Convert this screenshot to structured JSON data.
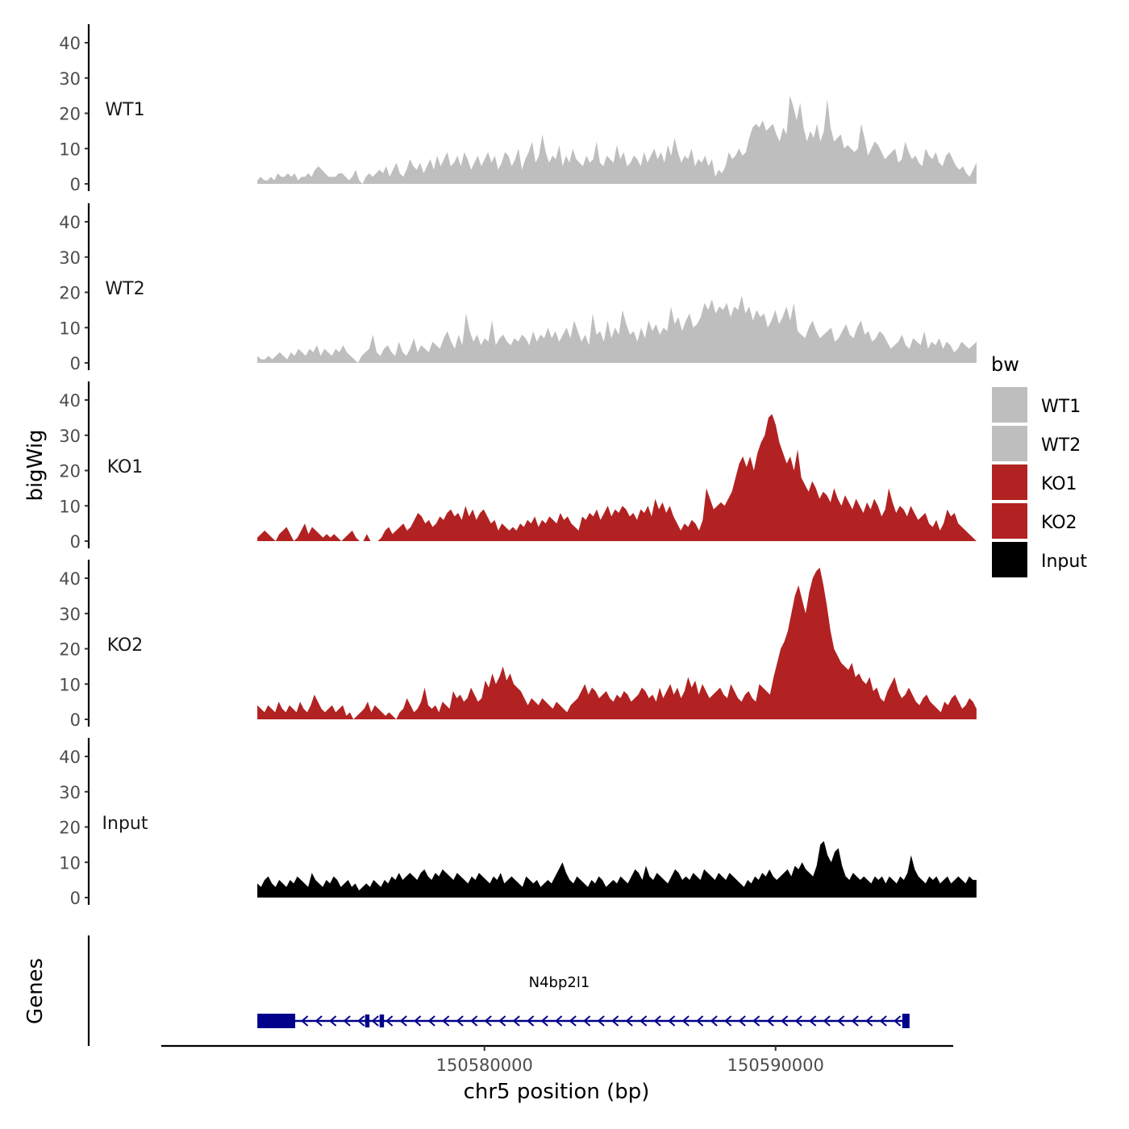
{
  "chart_data": {
    "type": "area",
    "title": "",
    "xlabel": "chr5 position (bp)",
    "ylabel": "bigWig",
    "genes_track_label": "Genes",
    "x_tick_labels": [
      "150580000",
      "150590000"
    ],
    "x_ticks": [
      150580000,
      150590000
    ],
    "xlim": [
      150568900,
      150596100
    ],
    "data_range": [
      150572200,
      150596900
    ],
    "ylim": [
      0,
      45
    ],
    "y_ticks": [
      0,
      10,
      20,
      30,
      40
    ],
    "y_tick_labels": [
      "0",
      "10",
      "20",
      "30",
      "40"
    ],
    "legend": {
      "title": "bw",
      "position": "right",
      "entries": [
        {
          "label": "WT1",
          "color": "#bebebe"
        },
        {
          "label": "WT2",
          "color": "#bebebe"
        },
        {
          "label": "KO1",
          "color": "#b22222"
        },
        {
          "label": "KO2",
          "color": "#b22222"
        },
        {
          "label": "Input",
          "color": "#000000"
        }
      ]
    },
    "series": [
      {
        "name": "WT1",
        "color": "#bebebe",
        "values": [
          1,
          2,
          1,
          1,
          2,
          1,
          3,
          2,
          2,
          3,
          2,
          3,
          1,
          2,
          2,
          3,
          2,
          4,
          5,
          4,
          3,
          2,
          2,
          2,
          3,
          3,
          2,
          1,
          2,
          4,
          1,
          0,
          2,
          3,
          2,
          3,
          4,
          3,
          5,
          2,
          4,
          6,
          3,
          2,
          4,
          7,
          5,
          4,
          6,
          3,
          5,
          7,
          4,
          8,
          5,
          7,
          9,
          5,
          6,
          8,
          5,
          9,
          7,
          4,
          6,
          8,
          5,
          7,
          9,
          6,
          8,
          4,
          6,
          9,
          8,
          5,
          7,
          10,
          4,
          7,
          9,
          12,
          6,
          8,
          14,
          9,
          6,
          8,
          7,
          11,
          5,
          8,
          6,
          10,
          7,
          6,
          5,
          8,
          6,
          7,
          12,
          6,
          5,
          8,
          7,
          6,
          11,
          7,
          9,
          5,
          6,
          8,
          7,
          5,
          9,
          6,
          8,
          10,
          7,
          9,
          6,
          11,
          8,
          13,
          9,
          6,
          8,
          7,
          10,
          5,
          7,
          6,
          8,
          5,
          7,
          2,
          4,
          3,
          5,
          9,
          7,
          8,
          10,
          8,
          9,
          13,
          16,
          17,
          16,
          18,
          15,
          16,
          17,
          14,
          12,
          16,
          14,
          25,
          22,
          18,
          23,
          16,
          12,
          15,
          13,
          17,
          12,
          15,
          24,
          16,
          12,
          13,
          14,
          10,
          11,
          10,
          9,
          10,
          17,
          13,
          8,
          10,
          12,
          11,
          9,
          7,
          8,
          9,
          10,
          6,
          7,
          12,
          9,
          7,
          8,
          6,
          5,
          10,
          8,
          7,
          9,
          6,
          5,
          8,
          9,
          7,
          5,
          4,
          5,
          3,
          2,
          4,
          6
        ]
      },
      {
        "name": "WT2",
        "color": "#bebebe",
        "values": [
          2,
          1,
          1,
          2,
          1,
          2,
          3,
          2,
          1,
          3,
          2,
          4,
          3,
          2,
          4,
          3,
          5,
          2,
          4,
          3,
          2,
          4,
          3,
          5,
          3,
          2,
          1,
          0,
          2,
          3,
          4,
          8,
          3,
          2,
          4,
          5,
          3,
          2,
          6,
          3,
          2,
          4,
          7,
          3,
          5,
          4,
          3,
          6,
          5,
          4,
          7,
          9,
          6,
          4,
          8,
          5,
          14,
          9,
          6,
          8,
          5,
          7,
          6,
          12,
          5,
          7,
          8,
          6,
          5,
          7,
          6,
          8,
          7,
          5,
          9,
          6,
          8,
          7,
          10,
          7,
          9,
          6,
          8,
          10,
          7,
          12,
          9,
          6,
          8,
          5,
          14,
          8,
          9,
          6,
          12,
          7,
          10,
          8,
          15,
          11,
          8,
          9,
          6,
          10,
          7,
          12,
          9,
          11,
          8,
          10,
          9,
          16,
          11,
          13,
          9,
          12,
          14,
          10,
          11,
          13,
          17,
          15,
          18,
          14,
          16,
          15,
          17,
          13,
          16,
          15,
          19,
          14,
          16,
          12,
          15,
          13,
          14,
          10,
          12,
          15,
          11,
          13,
          16,
          12,
          17,
          9,
          8,
          7,
          10,
          12,
          9,
          7,
          8,
          9,
          10,
          6,
          7,
          9,
          11,
          8,
          7,
          10,
          12,
          8,
          9,
          6,
          7,
          9,
          8,
          6,
          4,
          5,
          6,
          8,
          5,
          4,
          7,
          6,
          5,
          9,
          4,
          6,
          5,
          7,
          4,
          6,
          5,
          3,
          4,
          6,
          5,
          4,
          5,
          6
        ]
      },
      {
        "name": "KO1",
        "color": "#b22222",
        "values": [
          1,
          2,
          3,
          2,
          1,
          0,
          2,
          3,
          4,
          2,
          0,
          1,
          3,
          5,
          2,
          4,
          3,
          2,
          1,
          2,
          1,
          2,
          1,
          0,
          1,
          2,
          3,
          1,
          0,
          0,
          2,
          0,
          0,
          0,
          1,
          3,
          4,
          2,
          3,
          4,
          5,
          3,
          4,
          6,
          8,
          7,
          5,
          6,
          4,
          5,
          7,
          6,
          8,
          9,
          7,
          8,
          6,
          10,
          7,
          9,
          6,
          8,
          9,
          7,
          5,
          6,
          3,
          5,
          4,
          3,
          4,
          3,
          5,
          4,
          6,
          5,
          7,
          4,
          6,
          5,
          7,
          6,
          5,
          8,
          6,
          7,
          5,
          4,
          3,
          7,
          6,
          8,
          7,
          9,
          6,
          8,
          10,
          7,
          9,
          8,
          10,
          9,
          7,
          8,
          6,
          9,
          8,
          10,
          7,
          12,
          9,
          11,
          8,
          10,
          7,
          5,
          3,
          5,
          4,
          6,
          5,
          3,
          6,
          15,
          12,
          9,
          10,
          11,
          10,
          12,
          14,
          18,
          22,
          24,
          21,
          24,
          20,
          25,
          28,
          30,
          35,
          36,
          33,
          28,
          25,
          22,
          24,
          20,
          26,
          18,
          16,
          14,
          17,
          15,
          12,
          14,
          13,
          11,
          15,
          12,
          10,
          13,
          11,
          9,
          12,
          10,
          8,
          11,
          9,
          12,
          10,
          7,
          9,
          15,
          11,
          8,
          10,
          9,
          7,
          10,
          8,
          6,
          7,
          8,
          5,
          4,
          6,
          3,
          5,
          9,
          7,
          8,
          5,
          4,
          3,
          2,
          1,
          0
        ]
      },
      {
        "name": "KO2",
        "color": "#b22222",
        "values": [
          4,
          3,
          2,
          4,
          3,
          2,
          5,
          3,
          2,
          4,
          3,
          2,
          5,
          3,
          2,
          4,
          7,
          5,
          3,
          2,
          3,
          4,
          2,
          3,
          4,
          1,
          2,
          0,
          1,
          2,
          3,
          5,
          2,
          4,
          3,
          2,
          1,
          2,
          1,
          0,
          2,
          3,
          6,
          4,
          2,
          3,
          5,
          9,
          4,
          3,
          4,
          2,
          5,
          4,
          3,
          8,
          6,
          7,
          5,
          6,
          9,
          7,
          5,
          6,
          11,
          9,
          13,
          10,
          12,
          15,
          11,
          13,
          10,
          9,
          8,
          6,
          4,
          6,
          5,
          4,
          6,
          5,
          4,
          3,
          5,
          4,
          3,
          2,
          4,
          5,
          6,
          8,
          10,
          7,
          9,
          8,
          6,
          7,
          8,
          6,
          5,
          7,
          6,
          8,
          7,
          5,
          6,
          7,
          9,
          8,
          6,
          7,
          5,
          9,
          6,
          8,
          10,
          7,
          9,
          6,
          8,
          12,
          9,
          11,
          7,
          10,
          8,
          6,
          7,
          8,
          9,
          7,
          6,
          10,
          8,
          6,
          5,
          7,
          8,
          6,
          5,
          10,
          9,
          8,
          7,
          12,
          16,
          20,
          22,
          25,
          30,
          35,
          38,
          34,
          30,
          36,
          40,
          42,
          43,
          38,
          32,
          25,
          20,
          18,
          16,
          15,
          14,
          16,
          12,
          13,
          11,
          10,
          12,
          8,
          9,
          6,
          5,
          8,
          10,
          12,
          8,
          6,
          7,
          9,
          7,
          5,
          4,
          6,
          7,
          5,
          4,
          3,
          2,
          5,
          4,
          6,
          7,
          5,
          3,
          4,
          6,
          5,
          3
        ]
      },
      {
        "name": "Input",
        "color": "#000000",
        "values": [
          4,
          3,
          5,
          6,
          4,
          3,
          5,
          4,
          3,
          5,
          4,
          6,
          5,
          4,
          3,
          7,
          5,
          4,
          3,
          5,
          4,
          6,
          5,
          3,
          4,
          5,
          3,
          4,
          2,
          3,
          4,
          3,
          5,
          4,
          3,
          5,
          4,
          6,
          5,
          7,
          5,
          6,
          7,
          6,
          5,
          7,
          8,
          6,
          5,
          7,
          6,
          8,
          7,
          6,
          5,
          7,
          6,
          5,
          4,
          6,
          5,
          7,
          6,
          5,
          4,
          6,
          5,
          7,
          4,
          5,
          6,
          5,
          4,
          3,
          6,
          5,
          4,
          5,
          3,
          4,
          5,
          4,
          6,
          8,
          10,
          7,
          5,
          4,
          6,
          5,
          4,
          3,
          5,
          4,
          6,
          5,
          3,
          4,
          5,
          4,
          6,
          5,
          4,
          6,
          8,
          7,
          5,
          9,
          6,
          5,
          7,
          6,
          5,
          4,
          6,
          8,
          7,
          5,
          6,
          5,
          7,
          6,
          5,
          8,
          7,
          6,
          5,
          7,
          6,
          5,
          7,
          6,
          5,
          4,
          3,
          5,
          4,
          6,
          5,
          7,
          6,
          8,
          6,
          5,
          6,
          7,
          8,
          6,
          9,
          8,
          10,
          8,
          7,
          6,
          9,
          15,
          16,
          12,
          10,
          13,
          14,
          9,
          6,
          5,
          7,
          6,
          5,
          6,
          5,
          4,
          6,
          5,
          6,
          4,
          6,
          5,
          4,
          6,
          5,
          7,
          12,
          8,
          6,
          5,
          4,
          6,
          5,
          6,
          4,
          5,
          6,
          4,
          5,
          6,
          5,
          4,
          6,
          5,
          5
        ]
      }
    ],
    "genes": [
      {
        "name": "N4bp2l1",
        "strand": "-",
        "start": 150572200,
        "end": 150594600,
        "exons": [
          [
            150572200,
            150573500
          ],
          [
            150575900,
            150576050
          ],
          [
            150576400,
            150576550
          ],
          [
            150594350,
            150594600
          ]
        ]
      }
    ]
  }
}
